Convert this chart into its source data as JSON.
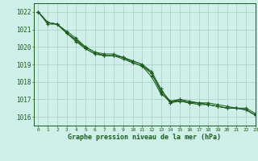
{
  "title": "Graphe pression niveau de la mer (hPa)",
  "bg_color": "#cef0e8",
  "grid_color": "#aaccc8",
  "line_color": "#1a5c1a",
  "marker": "+",
  "xlim": [
    -0.5,
    23
  ],
  "ylim": [
    1015.5,
    1022.5
  ],
  "xticks": [
    0,
    1,
    2,
    3,
    4,
    5,
    6,
    7,
    8,
    9,
    10,
    11,
    12,
    13,
    14,
    15,
    16,
    17,
    18,
    19,
    20,
    21,
    22,
    23
  ],
  "yticks": [
    1016,
    1017,
    1018,
    1019,
    1020,
    1021,
    1022
  ],
  "series": [
    [
      1022.0,
      1021.4,
      1021.3,
      1020.8,
      1020.4,
      1019.9,
      1019.6,
      1019.5,
      1019.5,
      1019.4,
      1019.1,
      1018.9,
      1018.5,
      1017.4,
      1016.8,
      1016.9,
      1016.8,
      1016.8,
      1016.7,
      1016.6,
      1016.5,
      1016.5,
      1016.4,
      1016.1
    ],
    [
      1022.0,
      1021.3,
      1021.3,
      1020.8,
      1020.3,
      1019.9,
      1019.6,
      1019.5,
      1019.5,
      1019.3,
      1019.1,
      1018.9,
      1018.3,
      1017.3,
      1016.9,
      1017.0,
      1016.8,
      1016.8,
      1016.7,
      1016.6,
      1016.5,
      1016.5,
      1016.4,
      1016.1
    ],
    [
      1022.0,
      1021.4,
      1021.3,
      1020.9,
      1020.5,
      1020.0,
      1019.7,
      1019.5,
      1019.5,
      1019.4,
      1019.2,
      1019.0,
      1018.6,
      1017.6,
      1016.8,
      1017.0,
      1016.9,
      1016.8,
      1016.8,
      1016.7,
      1016.6,
      1016.5,
      1016.5,
      1016.2
    ],
    [
      1022.0,
      1021.4,
      1021.3,
      1020.8,
      1020.4,
      1020.0,
      1019.7,
      1019.6,
      1019.6,
      1019.4,
      1019.2,
      1019.0,
      1018.5,
      1017.5,
      1016.9,
      1016.9,
      1016.8,
      1016.7,
      1016.7,
      1016.6,
      1016.5,
      1016.5,
      1016.4,
      1016.1
    ]
  ]
}
